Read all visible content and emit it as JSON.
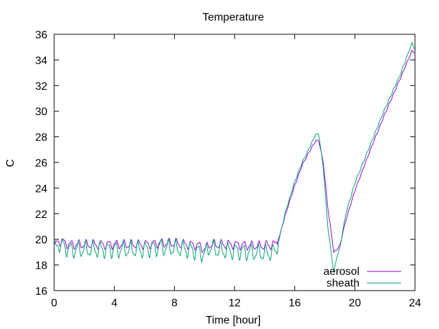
{
  "chart_data": {
    "type": "line",
    "title": "Temperature",
    "xlabel": "Time [hour]",
    "ylabel": "C",
    "xlim": [
      0,
      24
    ],
    "ylim": [
      16,
      36
    ],
    "xticks": [
      0,
      4,
      8,
      12,
      16,
      20,
      24
    ],
    "yticks": [
      16,
      18,
      20,
      22,
      24,
      26,
      28,
      30,
      32,
      34,
      36
    ],
    "grid": false,
    "legend_position": "bottom-right",
    "series": [
      {
        "name": "aerosol",
        "color": "#9400d3",
        "anchors": [
          [
            0.0,
            19.4
          ],
          [
            0.3,
            19.9
          ],
          [
            1.0,
            19.6
          ],
          [
            2.0,
            19.6
          ],
          [
            3.0,
            19.6
          ],
          [
            4.0,
            19.6
          ],
          [
            5.0,
            19.6
          ],
          [
            6.0,
            19.6
          ],
          [
            7.0,
            19.7
          ],
          [
            8.0,
            19.7
          ],
          [
            9.0,
            19.6
          ],
          [
            9.7,
            19.5
          ],
          [
            10.0,
            19.2
          ],
          [
            10.3,
            19.6
          ],
          [
            11.0,
            19.6
          ],
          [
            12.0,
            19.6
          ],
          [
            13.0,
            19.5
          ],
          [
            14.0,
            19.5
          ],
          [
            14.7,
            19.6
          ],
          [
            15.0,
            20.3
          ],
          [
            15.4,
            22.0
          ],
          [
            16.0,
            24.2
          ],
          [
            16.5,
            25.8
          ],
          [
            17.0,
            26.9
          ],
          [
            17.4,
            27.7
          ],
          [
            17.6,
            27.7
          ],
          [
            17.9,
            26.0
          ],
          [
            18.2,
            22.5
          ],
          [
            18.6,
            19.0
          ],
          [
            18.8,
            19.2
          ],
          [
            19.0,
            19.5
          ],
          [
            19.4,
            21.5
          ],
          [
            20.0,
            23.8
          ],
          [
            21.0,
            26.9
          ],
          [
            22.0,
            29.8
          ],
          [
            23.0,
            32.5
          ],
          [
            23.8,
            34.7
          ],
          [
            24.0,
            34.6
          ]
        ],
        "wiggle_amp": 0.3
      },
      {
        "name": "sheath",
        "color": "#009e73",
        "anchors": [
          [
            0.0,
            19.0
          ],
          [
            0.3,
            19.7
          ],
          [
            1.0,
            19.2
          ],
          [
            2.0,
            19.2
          ],
          [
            3.0,
            19.2
          ],
          [
            4.0,
            19.2
          ],
          [
            5.0,
            19.2
          ],
          [
            6.0,
            19.2
          ],
          [
            7.0,
            19.4
          ],
          [
            8.0,
            19.3
          ],
          [
            9.0,
            19.2
          ],
          [
            9.7,
            19.0
          ],
          [
            10.0,
            18.8
          ],
          [
            10.3,
            19.4
          ],
          [
            11.0,
            19.1
          ],
          [
            12.0,
            19.1
          ],
          [
            13.0,
            19.0
          ],
          [
            14.0,
            18.9
          ],
          [
            14.7,
            19.0
          ],
          [
            15.0,
            20.2
          ],
          [
            15.4,
            22.2
          ],
          [
            16.0,
            24.5
          ],
          [
            16.5,
            26.0
          ],
          [
            17.0,
            27.2
          ],
          [
            17.4,
            28.2
          ],
          [
            17.6,
            28.2
          ],
          [
            17.9,
            25.6
          ],
          [
            18.2,
            21.0
          ],
          [
            18.6,
            17.4
          ],
          [
            18.8,
            18.6
          ],
          [
            19.0,
            19.3
          ],
          [
            19.4,
            22.0
          ],
          [
            20.0,
            24.4
          ],
          [
            21.0,
            27.3
          ],
          [
            22.0,
            30.2
          ],
          [
            23.0,
            32.8
          ],
          [
            23.8,
            35.3
          ],
          [
            24.0,
            34.8
          ]
        ],
        "wiggle_amp": 0.55
      }
    ]
  }
}
